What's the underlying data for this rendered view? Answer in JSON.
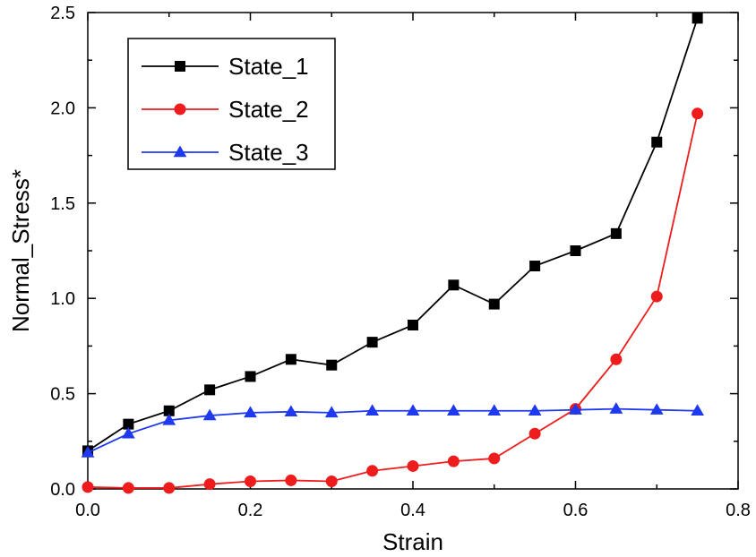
{
  "chart_data": {
    "type": "line",
    "title": "",
    "xlabel": "Strain",
    "ylabel": "Normal_Stress*",
    "xlim": [
      0.0,
      0.8
    ],
    "ylim": [
      0.0,
      2.5
    ],
    "x_ticks": [
      0.0,
      0.2,
      0.4,
      0.6,
      0.8
    ],
    "x_tick_labels": [
      "0.0",
      "0.2",
      "0.4",
      "0.6",
      "0.8"
    ],
    "y_ticks": [
      0.0,
      0.5,
      1.0,
      1.5,
      2.0,
      2.5
    ],
    "y_tick_labels": [
      "0.0",
      "0.5",
      "1.0",
      "1.5",
      "2.0",
      "2.5"
    ],
    "grid": false,
    "legend_position": "top-left",
    "x": [
      0.0,
      0.05,
      0.1,
      0.15,
      0.2,
      0.25,
      0.3,
      0.35,
      0.4,
      0.45,
      0.5,
      0.55,
      0.6,
      0.65,
      0.7,
      0.75
    ],
    "series": [
      {
        "name": "State_1",
        "color": "#000000",
        "marker": "square",
        "values": [
          0.2,
          0.34,
          0.41,
          0.52,
          0.59,
          0.68,
          0.65,
          0.77,
          0.86,
          1.07,
          0.97,
          1.17,
          1.25,
          1.34,
          1.82,
          2.47
        ]
      },
      {
        "name": "State_2",
        "color": "#ee1c1c",
        "marker": "circle",
        "values": [
          0.01,
          0.005,
          0.005,
          0.025,
          0.04,
          0.045,
          0.04,
          0.095,
          0.12,
          0.145,
          0.16,
          0.29,
          0.42,
          0.68,
          1.01,
          1.97
        ]
      },
      {
        "name": "State_3",
        "color": "#1f39ee",
        "marker": "triangle",
        "values": [
          0.19,
          0.29,
          0.36,
          0.385,
          0.4,
          0.405,
          0.4,
          0.41,
          0.41,
          0.41,
          0.41,
          0.41,
          0.415,
          0.42,
          0.415,
          0.41
        ]
      }
    ]
  }
}
